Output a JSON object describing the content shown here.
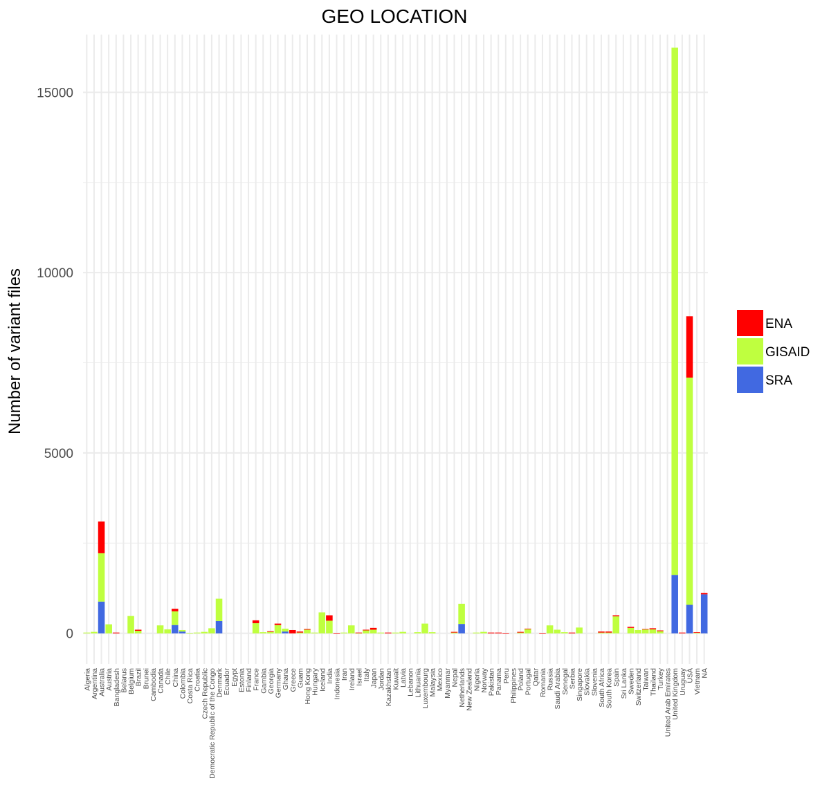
{
  "chart_data": {
    "type": "bar",
    "stacked": true,
    "title": "GEO LOCATION",
    "xlabel": "",
    "ylabel": "Number of variant files",
    "ylim": [
      -850,
      16600
    ],
    "yticks": [
      0,
      5000,
      10000,
      15000
    ],
    "grid": true,
    "legend_position": "right",
    "categories": [
      "Algeria",
      "Argentina",
      "Australia",
      "Austria",
      "Bangladesh",
      "Belarus",
      "Belgium",
      "Brazil",
      "Brunei",
      "Cambodia",
      "Canada",
      "Chile",
      "China",
      "Colombia",
      "Costa Rica",
      "Croatia",
      "Czech Republic",
      "Democratic Republic of the Congo",
      "Denmark",
      "Ecuador",
      "Egypt",
      "Estonia",
      "Finland",
      "France",
      "Gambia",
      "Georgia",
      "Germany",
      "Ghana",
      "Greece",
      "Guam",
      "Hong Kong",
      "Hungary",
      "Iceland",
      "India",
      "Indonesia",
      "Iran",
      "Ireland",
      "Israel",
      "Italy",
      "Japan",
      "Jordan",
      "Kazakhstan",
      "Kuwait",
      "Latvia",
      "Lebanon",
      "Lithuania",
      "Luxembourg",
      "Malaysia",
      "Mexico",
      "Myanmar",
      "Nepal",
      "Netherlands",
      "New Zealand",
      "Nigeria",
      "Norway",
      "Pakistan",
      "Panama",
      "Peru",
      "Philippines",
      "Poland",
      "Portugal",
      "Qatar",
      "Romania",
      "Russia",
      "Saudi Arabia",
      "Senegal",
      "Serbia",
      "Singapore",
      "Slovakia",
      "Slovenia",
      "South Africa",
      "South Korea",
      "Spain",
      "Sri Lanka",
      "Sweden",
      "Switzerland",
      "Taiwan",
      "Thailand",
      "Turkey",
      "United Arab Emirates",
      "United Kingdom",
      "Uruguay",
      "USA",
      "Vietnam",
      "NA"
    ],
    "series": [
      {
        "name": "SRA",
        "color": "#4169E1",
        "values": [
          0,
          0,
          880,
          0,
          0,
          0,
          0,
          0,
          0,
          0,
          0,
          0,
          230,
          50,
          0,
          0,
          0,
          0,
          340,
          0,
          0,
          0,
          0,
          0,
          0,
          0,
          0,
          50,
          0,
          0,
          0,
          0,
          0,
          0,
          0,
          0,
          0,
          0,
          0,
          0,
          0,
          0,
          0,
          0,
          0,
          0,
          0,
          0,
          0,
          0,
          0,
          260,
          0,
          0,
          0,
          0,
          0,
          0,
          0,
          0,
          0,
          0,
          0,
          0,
          0,
          0,
          0,
          0,
          0,
          0,
          0,
          0,
          0,
          0,
          0,
          0,
          0,
          0,
          0,
          0,
          1620,
          0,
          790,
          0,
          1080
        ]
      },
      {
        "name": "GISAID",
        "color": "#BFFF3F",
        "values": [
          20,
          40,
          1340,
          250,
          0,
          0,
          480,
          70,
          0,
          0,
          220,
          110,
          380,
          40,
          10,
          20,
          40,
          140,
          620,
          0,
          0,
          0,
          0,
          280,
          30,
          40,
          230,
          80,
          0,
          20,
          100,
          20,
          580,
          350,
          0,
          20,
          220,
          10,
          80,
          100,
          20,
          0,
          20,
          40,
          0,
          30,
          270,
          30,
          0,
          0,
          20,
          560,
          0,
          20,
          40,
          0,
          0,
          0,
          0,
          20,
          120,
          0,
          0,
          220,
          100,
          30,
          0,
          160,
          0,
          0,
          20,
          20,
          470,
          0,
          150,
          90,
          110,
          110,
          60,
          0,
          14620,
          0,
          6300,
          20,
          0
        ]
      },
      {
        "name": "ENA",
        "color": "#FF0000",
        "values": [
          0,
          0,
          880,
          0,
          20,
          0,
          0,
          30,
          0,
          0,
          0,
          0,
          70,
          0,
          0,
          0,
          0,
          0,
          0,
          0,
          0,
          0,
          0,
          80,
          0,
          20,
          40,
          0,
          90,
          30,
          20,
          0,
          0,
          150,
          10,
          0,
          0,
          10,
          20,
          50,
          0,
          20,
          0,
          0,
          0,
          0,
          0,
          0,
          0,
          0,
          20,
          0,
          0,
          0,
          0,
          20,
          20,
          10,
          0,
          20,
          10,
          0,
          10,
          0,
          0,
          0,
          20,
          0,
          0,
          0,
          30,
          30,
          30,
          0,
          30,
          0,
          10,
          30,
          20,
          0,
          0,
          20,
          1700,
          10,
          40
        ]
      }
    ]
  }
}
